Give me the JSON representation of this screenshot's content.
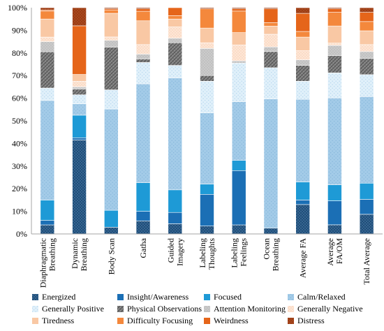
{
  "chart_data": {
    "type": "bar",
    "stacked": true,
    "categories": [
      [
        "Diaphragmatic",
        "Breathing"
      ],
      [
        "Dynamic",
        "Breathing"
      ],
      [
        "Body Scan"
      ],
      [
        "Gatha"
      ],
      [
        "Guided",
        "Imagery"
      ],
      [
        "Labeling",
        "Thoughts"
      ],
      [
        "Labeling",
        "Feelings"
      ],
      [
        "Ocean",
        "Breathing"
      ],
      [
        "Average FA"
      ],
      [
        "Average",
        "FA/OM"
      ],
      [
        "Total Average"
      ]
    ],
    "yticks": [
      "0%",
      "10%",
      "20%",
      "30%",
      "40%",
      "50%",
      "60%",
      "70%",
      "80%",
      "90%",
      "100%"
    ],
    "ylim": [
      0,
      100
    ],
    "grid": false,
    "legend_position": "bottom",
    "series": [
      {
        "name": "Energized",
        "color": "#1f4e79",
        "pattern": "pat-dark",
        "values": [
          4,
          41.5,
          3,
          5.5,
          4.5,
          3.5,
          4,
          2.5,
          13,
          4,
          8.5
        ]
      },
      {
        "name": "Insight/Awareness",
        "color": "#1b6fb5",
        "pattern": "none",
        "values": [
          2,
          1,
          0,
          4,
          5,
          14,
          24,
          0,
          2,
          10.5,
          6.5
        ]
      },
      {
        "name": "Focused",
        "color": "#1e9ad6",
        "pattern": "none",
        "values": [
          9,
          10,
          7.5,
          12,
          10,
          4.5,
          4.5,
          0,
          8,
          7,
          7
        ]
      },
      {
        "name": "Calm/Relaxed",
        "color": "#9dc8e6",
        "pattern": "pat-light",
        "values": [
          44,
          5,
          45,
          41.5,
          49.5,
          31.5,
          26,
          56,
          36.5,
          38,
          37.5
        ]
      },
      {
        "name": "Generally Positive",
        "color": "#dcedf8",
        "pattern": "pat-pale",
        "values": [
          5.5,
          4,
          8.5,
          9,
          5.5,
          14,
          17,
          13.5,
          8,
          11,
          9.5
        ]
      },
      {
        "name": "Physical Observations",
        "color": "#7f7f7f",
        "pattern": "pat-hatch",
        "values": [
          16,
          2.5,
          19,
          1.5,
          10,
          2.5,
          0,
          7,
          7,
          7.5,
          7
        ]
      },
      {
        "name": "Attention Monitoring",
        "color": "#c6c6c6",
        "pattern": "pat-grey",
        "values": [
          4.5,
          1,
          3,
          2,
          2,
          12,
          1,
          2,
          2.5,
          4.5,
          3
        ]
      },
      {
        "name": "Generally Negative",
        "color": "#fde3d0",
        "pattern": "pat-peach",
        "values": [
          2,
          2.5,
          1.5,
          4,
          5,
          2.5,
          7,
          5.5,
          4,
          1,
          3
        ]
      },
      {
        "name": "Tiredness",
        "color": "#f9c8a4",
        "pattern": "none",
        "values": [
          8,
          3,
          10.5,
          10,
          3.5,
          6.5,
          5.5,
          3.5,
          6,
          7.5,
          6
        ]
      },
      {
        "name": "Difficulty Focusing",
        "color": "#f4883c",
        "pattern": "none",
        "values": [
          3.5,
          0,
          1.5,
          4,
          1.5,
          8.5,
          9.5,
          1.5,
          2.5,
          6,
          4
        ]
      },
      {
        "name": "Weirdness",
        "color": "#e5651a",
        "pattern": "none",
        "values": [
          0.5,
          21.5,
          0.5,
          1,
          3.5,
          0,
          1,
          6,
          8,
          1.5,
          4
        ]
      },
      {
        "name": "Distress",
        "color": "#a0411a",
        "pattern": "pat-brown",
        "values": [
          1,
          8,
          0.5,
          0.5,
          0,
          0.5,
          0.5,
          0.5,
          2.5,
          0.5,
          2
        ]
      }
    ]
  }
}
